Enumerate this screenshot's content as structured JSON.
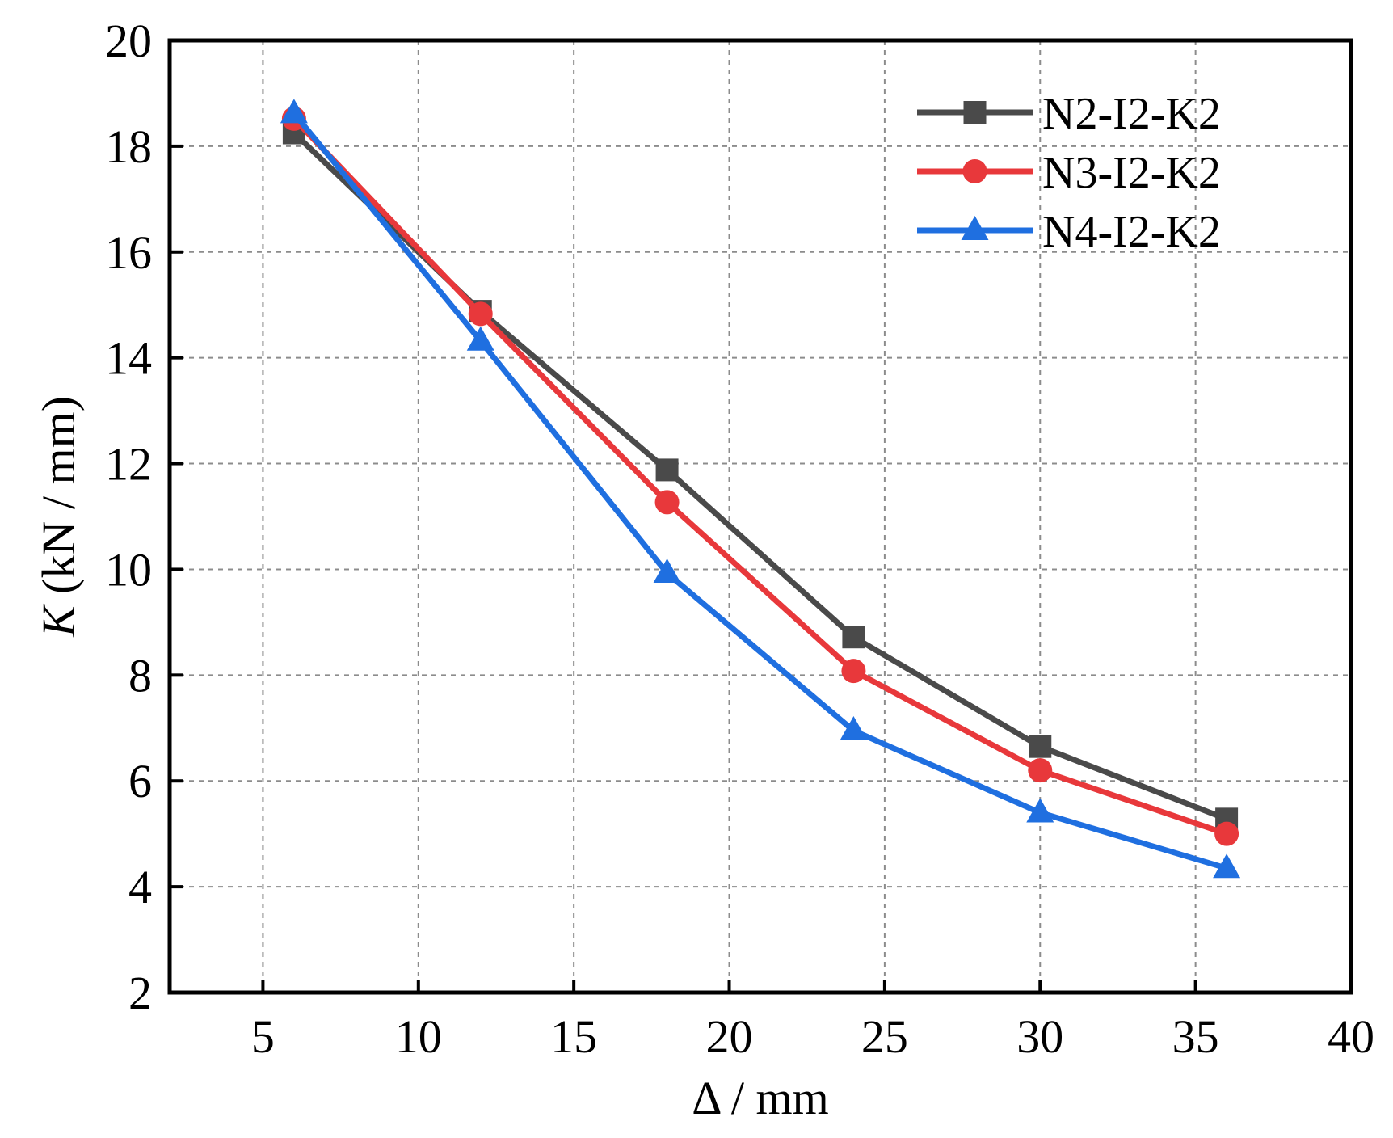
{
  "chart_data": {
    "type": "line",
    "title": "",
    "xlabel": "Δ / mm",
    "ylabel_italic": "K",
    "ylabel_rest": " (kN / mm)",
    "xlim": [
      2,
      40
    ],
    "ylim": [
      2,
      20
    ],
    "xticks": [
      5,
      10,
      15,
      20,
      25,
      30,
      35,
      40
    ],
    "yticks": [
      2,
      4,
      6,
      8,
      10,
      12,
      14,
      16,
      18,
      20
    ],
    "grid": true,
    "legend_position": "top-right",
    "x": [
      6,
      12,
      18,
      24,
      30,
      36
    ],
    "series": [
      {
        "name": "N2-I2-K2",
        "marker": "square",
        "color": "#4a4a4a",
        "values": [
          18.25,
          14.88,
          11.88,
          8.72,
          6.65,
          5.28
        ]
      },
      {
        "name": "N3-I2-K2",
        "marker": "circle",
        "color": "#e8383b",
        "values": [
          18.52,
          14.83,
          11.27,
          8.08,
          6.2,
          5.0
        ]
      },
      {
        "name": "N4-I2-K2",
        "marker": "triangle",
        "color": "#1f6fe0",
        "values": [
          18.62,
          14.32,
          9.93,
          6.95,
          5.4,
          4.35
        ]
      }
    ]
  }
}
